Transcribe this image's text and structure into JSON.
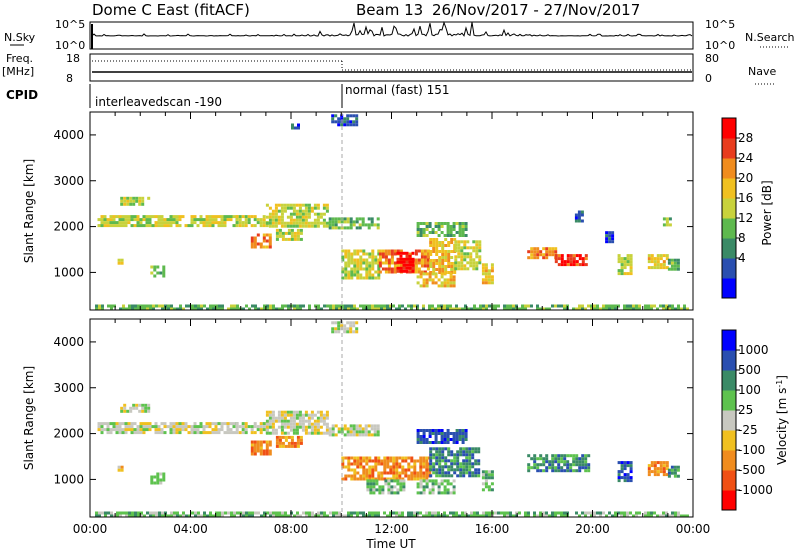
{
  "header": {
    "station": "Dome C East (fitACF)",
    "beam": "Beam 13",
    "dates": "26/Nov/2017 - 27/Nov/2017"
  },
  "small_panels": {
    "nsky": {
      "label": "N.Sky",
      "tick_top": "10^5",
      "tick_bottom": "10^0"
    },
    "nsearch": {
      "label": "N.Search",
      "tick_top": "10^5",
      "tick_bottom": "10^0"
    },
    "freq": {
      "label_top": "Freq.",
      "label_unit": "[MHz]",
      "tick_top": "18",
      "tick_bottom": "8"
    },
    "nave": {
      "label": "Nave",
      "tick_top": "80",
      "tick_bottom": "0"
    },
    "cpid": {
      "label": "CPID",
      "mode1": "interleavedscan -190",
      "mode2": "normal (fast) 151"
    }
  },
  "colorbars": {
    "power": {
      "title": "Power [dB]",
      "ticks": [
        "28",
        "24",
        "20",
        "16",
        "12",
        "8",
        "4"
      ],
      "colors": [
        "#0000ff",
        "#2a4fb0",
        "#3a8a66",
        "#5eb94e",
        "#c8d23c",
        "#f0c020",
        "#f08c1e",
        "#e83c1e",
        "#ff0000"
      ]
    },
    "velocity": {
      "title": "Velocity [m s",
      "title_sup": "-1",
      "title_end": "]",
      "ticks": [
        "1000",
        "500",
        "100",
        "25",
        "-25",
        "-100",
        "-500",
        "-1000"
      ],
      "colors": [
        "#ff0000",
        "#f05014",
        "#f08c1e",
        "#f0c020",
        "#c8c8c0",
        "#5ec24e",
        "#3a8a66",
        "#2a4fb0",
        "#0000ff"
      ]
    }
  },
  "chart_data": [
    {
      "type": "heatmap",
      "name": "power",
      "ylabel": "Slant Range [km]",
      "xlim_hours": [
        0,
        24
      ],
      "ylim": [
        180,
        4500
      ],
      "yticks": [
        "4000",
        "3000",
        "2000",
        "1000"
      ],
      "patches": [
        {
          "t0": 0.3,
          "t1": 5.8,
          "r0": 2050,
          "r1": 2250,
          "c": 4
        },
        {
          "t0": 5.8,
          "t1": 7.0,
          "r0": 2000,
          "r1": 2250,
          "c": 4
        },
        {
          "t0": 7.0,
          "t1": 9.5,
          "r0": 2000,
          "r1": 2500,
          "c": 4
        },
        {
          "t0": 9.5,
          "t1": 11.5,
          "r0": 2000,
          "r1": 2200,
          "c": 3
        },
        {
          "t0": 1.2,
          "t1": 2.3,
          "r0": 2500,
          "r1": 2650,
          "c": 4
        },
        {
          "t0": 6.4,
          "t1": 7.2,
          "r0": 1550,
          "r1": 1850,
          "c": 6
        },
        {
          "t0": 7.4,
          "t1": 8.4,
          "r0": 1700,
          "r1": 1950,
          "c": 4
        },
        {
          "t0": 9.6,
          "t1": 10.6,
          "r0": 4250,
          "r1": 4450,
          "c": 1
        },
        {
          "t0": 8.0,
          "t1": 8.3,
          "r0": 4150,
          "r1": 4250,
          "c": 1
        },
        {
          "t0": 10.0,
          "t1": 11.5,
          "r0": 900,
          "r1": 1500,
          "c": 4
        },
        {
          "t0": 11.5,
          "t1": 13.5,
          "r0": 1000,
          "r1": 1500,
          "c": 6
        },
        {
          "t0": 12.2,
          "t1": 12.8,
          "r0": 1000,
          "r1": 1450,
          "c": 8
        },
        {
          "t0": 13.5,
          "t1": 14.5,
          "r0": 1000,
          "r1": 1750,
          "c": 5
        },
        {
          "t0": 14.5,
          "t1": 15.5,
          "r0": 1100,
          "r1": 1700,
          "c": 4
        },
        {
          "t0": 13.0,
          "t1": 14.5,
          "r0": 700,
          "r1": 1000,
          "c": 5
        },
        {
          "t0": 13.0,
          "t1": 15.0,
          "r0": 1800,
          "r1": 2100,
          "c": 3
        },
        {
          "t0": 15.6,
          "t1": 16.0,
          "r0": 800,
          "r1": 1200,
          "c": 5
        },
        {
          "t0": 17.4,
          "t1": 18.5,
          "r0": 1300,
          "r1": 1550,
          "c": 6
        },
        {
          "t0": 18.5,
          "t1": 19.8,
          "r0": 1150,
          "r1": 1400,
          "c": 7
        },
        {
          "t0": 21.0,
          "t1": 21.5,
          "r0": 1000,
          "r1": 1400,
          "c": 4
        },
        {
          "t0": 22.2,
          "t1": 23.0,
          "r0": 1100,
          "r1": 1400,
          "c": 5
        },
        {
          "t0": 23.0,
          "t1": 23.4,
          "r0": 1100,
          "r1": 1300,
          "c": 3
        },
        {
          "t0": 19.3,
          "t1": 19.6,
          "r0": 2150,
          "r1": 2350,
          "c": 1
        },
        {
          "t0": 20.5,
          "t1": 20.8,
          "r0": 1700,
          "r1": 1900,
          "c": 1
        },
        {
          "t0": 22.8,
          "t1": 23.1,
          "r0": 2050,
          "r1": 2200,
          "c": 3
        },
        {
          "t0": 2.4,
          "t1": 2.9,
          "r0": 950,
          "r1": 1150,
          "c": 3
        },
        {
          "t0": 1.1,
          "t1": 1.3,
          "r0": 1200,
          "r1": 1300,
          "c": 5
        },
        {
          "t0": 0.2,
          "t1": 23.8,
          "r0": 200,
          "r1": 300,
          "c": 3
        }
      ]
    },
    {
      "type": "heatmap",
      "name": "velocity",
      "ylabel": "Slant Range [km]",
      "xlabel": "Time UT",
      "xlim_hours": [
        0,
        24
      ],
      "xticks": [
        "00:00",
        "04:00",
        "08:00",
        "12:00",
        "16:00",
        "20:00",
        "00:00"
      ],
      "ylim": [
        180,
        4500
      ],
      "yticks": [
        "4000",
        "3000",
        "2000",
        "1000"
      ],
      "patches": [
        {
          "t0": 0.3,
          "t1": 5.8,
          "r0": 2050,
          "r1": 2250,
          "c": 4
        },
        {
          "t0": 5.8,
          "t1": 7.0,
          "r0": 2000,
          "r1": 2250,
          "c": 4
        },
        {
          "t0": 7.0,
          "t1": 9.5,
          "r0": 2000,
          "r1": 2500,
          "c": 4
        },
        {
          "t0": 9.5,
          "t1": 11.5,
          "r0": 2000,
          "r1": 2200,
          "c": 4
        },
        {
          "t0": 1.2,
          "t1": 2.3,
          "r0": 2500,
          "r1": 2650,
          "c": 4
        },
        {
          "t0": 6.4,
          "t1": 7.2,
          "r0": 1550,
          "r1": 1850,
          "c": 2
        },
        {
          "t0": 7.4,
          "t1": 8.4,
          "r0": 1700,
          "r1": 1950,
          "c": 2
        },
        {
          "t0": 9.6,
          "t1": 10.6,
          "r0": 4250,
          "r1": 4450,
          "c": 4
        },
        {
          "t0": 10.0,
          "t1": 13.5,
          "r0": 1000,
          "r1": 1500,
          "c": 2
        },
        {
          "t0": 11.0,
          "t1": 12.5,
          "r0": 700,
          "r1": 1000,
          "c": 5
        },
        {
          "t0": 13.5,
          "t1": 15.5,
          "r0": 1100,
          "r1": 1700,
          "c": 6
        },
        {
          "t0": 13.0,
          "t1": 15.0,
          "r0": 1800,
          "r1": 2100,
          "c": 7
        },
        {
          "t0": 13.0,
          "t1": 14.5,
          "r0": 700,
          "r1": 1000,
          "c": 5
        },
        {
          "t0": 15.6,
          "t1": 16.0,
          "r0": 800,
          "r1": 1200,
          "c": 5
        },
        {
          "t0": 17.4,
          "t1": 19.8,
          "r0": 1200,
          "r1": 1550,
          "c": 6
        },
        {
          "t0": 21.0,
          "t1": 21.5,
          "r0": 1000,
          "r1": 1400,
          "c": 7
        },
        {
          "t0": 22.2,
          "t1": 23.0,
          "r0": 1100,
          "r1": 1400,
          "c": 2
        },
        {
          "t0": 23.0,
          "t1": 23.4,
          "r0": 1100,
          "r1": 1300,
          "c": 6
        },
        {
          "t0": 2.4,
          "t1": 2.9,
          "r0": 950,
          "r1": 1150,
          "c": 5
        },
        {
          "t0": 1.1,
          "t1": 1.3,
          "r0": 1200,
          "r1": 1300,
          "c": 3
        },
        {
          "t0": 0.2,
          "t1": 23.8,
          "r0": 200,
          "r1": 300,
          "c": 5
        }
      ]
    }
  ]
}
